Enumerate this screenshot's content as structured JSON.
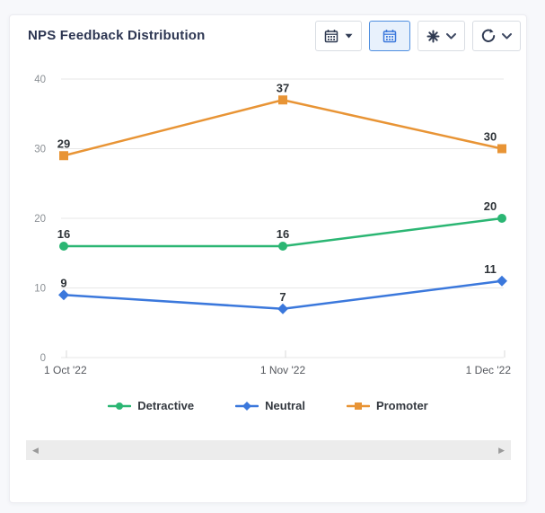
{
  "card": {
    "title": "NPS Feedback Distribution"
  },
  "toolbar": {
    "buttons": [
      {
        "id": "date-range-dropdown-button",
        "icon": "calendar-icon",
        "has_caret": true,
        "active": false
      },
      {
        "id": "calendar-view-button",
        "icon": "calendar-icon",
        "has_caret": false,
        "active": true
      },
      {
        "id": "options-dropdown-button",
        "icon": "asterisk-icon",
        "has_caret": true,
        "active": false
      },
      {
        "id": "refresh-dropdown-button",
        "icon": "refresh-icon",
        "has_caret": true,
        "active": false
      }
    ]
  },
  "chart_data": {
    "type": "line",
    "title": "NPS Feedback Distribution",
    "x": [
      "1 Oct '22",
      "1 Nov '22",
      "1 Dec '22"
    ],
    "series": [
      {
        "name": "Detractive",
        "values": [
          16,
          16,
          20
        ],
        "color": "#2bb673",
        "marker": "circle"
      },
      {
        "name": "Neutral",
        "values": [
          9,
          7,
          11
        ],
        "color": "#3b78dc",
        "marker": "diamond"
      },
      {
        "name": "Promoter",
        "values": [
          29,
          37,
          30
        ],
        "color": "#e89435",
        "marker": "square"
      }
    ],
    "ylim": [
      0,
      40
    ],
    "yticks": [
      0,
      10,
      20,
      30,
      40
    ],
    "grid": true,
    "data_labels": true,
    "legend_position": "bottom"
  },
  "scrollbar": {
    "left_arrow": "◀",
    "right_arrow": "▶"
  },
  "colors": {
    "accent_blue": "#3b78dc",
    "active_button_bg": "#e8f1fc",
    "active_button_border": "#4f8fe0",
    "title_text": "#2d3652",
    "grid_line": "#e7e7e7",
    "y_axis_label": "#8b9095",
    "x_axis_label": "#55585e",
    "data_label": "#2e3338",
    "page_bg": "#f7f8fb"
  }
}
